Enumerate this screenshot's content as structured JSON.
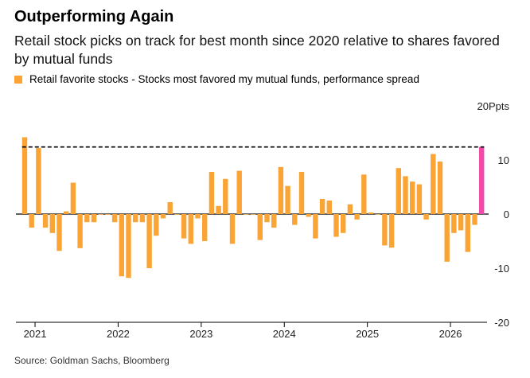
{
  "title": "Outperforming Again",
  "subtitle": "Retail stock picks on track for best month since 2020 relative to shares favored by mutual funds",
  "source": "Source: Goldman Sachs, Bloomberg",
  "colors": {
    "bar": "#f9a435",
    "highlight": "#f34aaa",
    "reference": "#000000",
    "axis": "#000000"
  },
  "chart_data": {
    "type": "bar",
    "title": "Outperforming Again",
    "subtitle": "Retail stock picks on track for best month since 2020 relative to shares favored by mutual funds",
    "legend": [
      "Retail favorite stocks - Stocks most favored my mutual funds, performance spread"
    ],
    "series_name": "Retail favorite stocks - Stocks most favored my mutual funds, performance spread",
    "units_label": "20Ppts",
    "ylim": [
      -20,
      20
    ],
    "y_ticks": [
      20,
      10,
      0,
      -10,
      -20
    ],
    "y_tick_labels": [
      "20Ppts",
      "10",
      "0",
      "-10",
      "-20"
    ],
    "x_ticks": [
      "2021",
      "2022",
      "2023",
      "2024",
      "2025",
      "2026"
    ],
    "start": "2020-11",
    "months": [
      "2020-11",
      "2020-12",
      "2021-01",
      "2021-02",
      "2021-03",
      "2021-04",
      "2021-05",
      "2021-06",
      "2021-07",
      "2021-08",
      "2021-09",
      "2021-10",
      "2021-11",
      "2021-12",
      "2022-01",
      "2022-02",
      "2022-03",
      "2022-04",
      "2022-05",
      "2022-06",
      "2022-07",
      "2022-08",
      "2022-09",
      "2022-10",
      "2022-11",
      "2022-12",
      "2023-01",
      "2023-02",
      "2023-03",
      "2023-04",
      "2023-05",
      "2023-06",
      "2023-07",
      "2023-08",
      "2023-09",
      "2023-10",
      "2023-11",
      "2023-12",
      "2024-01",
      "2024-02",
      "2024-03",
      "2024-04",
      "2024-05",
      "2024-06",
      "2024-07",
      "2024-08",
      "2024-09",
      "2024-10",
      "2024-11",
      "2024-12",
      "2025-01",
      "2025-02",
      "2025-03",
      "2025-04",
      "2025-05",
      "2025-06",
      "2025-07",
      "2025-08",
      "2025-09",
      "2025-10",
      "2025-11",
      "2025-12",
      "2026-01",
      "2026-02",
      "2026-03",
      "2026-04"
    ],
    "values": [
      14.2,
      -2.5,
      12.2,
      -2.5,
      -3.5,
      -6.8,
      0.5,
      5.8,
      -6.3,
      -1.5,
      -1.5,
      0,
      0,
      -1.5,
      -11.5,
      -11.8,
      -1.5,
      -1.5,
      -10,
      -4,
      -0.8,
      2.2,
      0,
      -4.5,
      -5.5,
      -0.8,
      -5,
      7.8,
      1.5,
      6.5,
      -5.5,
      8,
      0,
      0,
      -4.8,
      -1.5,
      -2.5,
      8.7,
      5.2,
      -2,
      7.8,
      -0.5,
      -4.5,
      2.8,
      2.5,
      -4.2,
      -3.5,
      1.8,
      -1,
      7.3,
      0.3,
      0,
      -5.8,
      -6.2,
      8.5,
      7,
      6,
      5.5,
      -1,
      11.1,
      9.7,
      -8.8,
      -3.5,
      -3,
      -7,
      -2
    ],
    "current_value": 12.4,
    "reference_line": 12.4
  }
}
